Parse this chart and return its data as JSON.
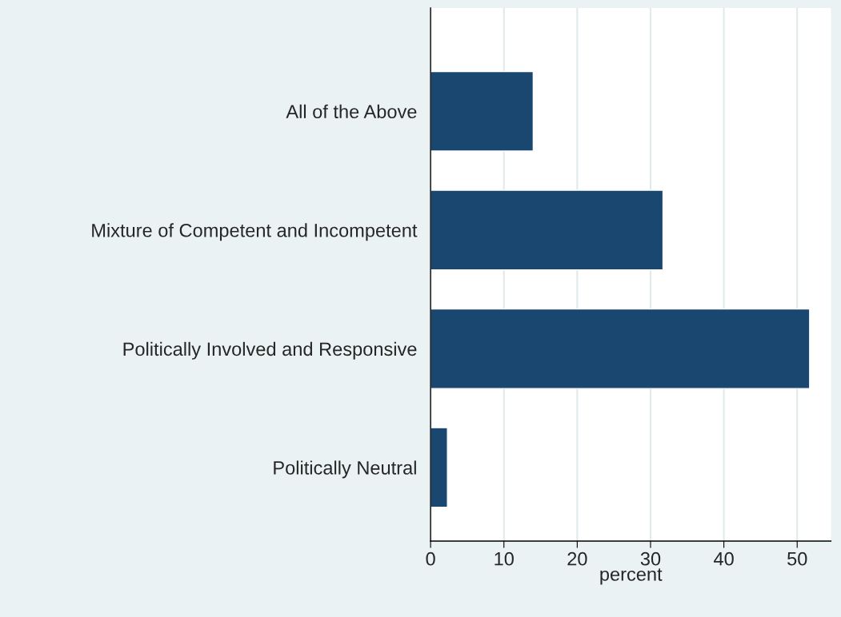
{
  "chart_data": {
    "type": "bar",
    "orientation": "horizontal",
    "xlabel": "percent",
    "categories": [
      "All of the Above",
      "Mixture of Competent and Incompetent",
      "Politically Involved and Responsive",
      "Politically Neutral"
    ],
    "values": [
      14.0,
      31.7,
      51.7,
      2.3
    ],
    "color": "#1a476f",
    "xlim": [
      0,
      54.6
    ],
    "xticks": [
      0,
      10,
      20,
      30,
      40,
      50
    ],
    "grid": "x"
  }
}
